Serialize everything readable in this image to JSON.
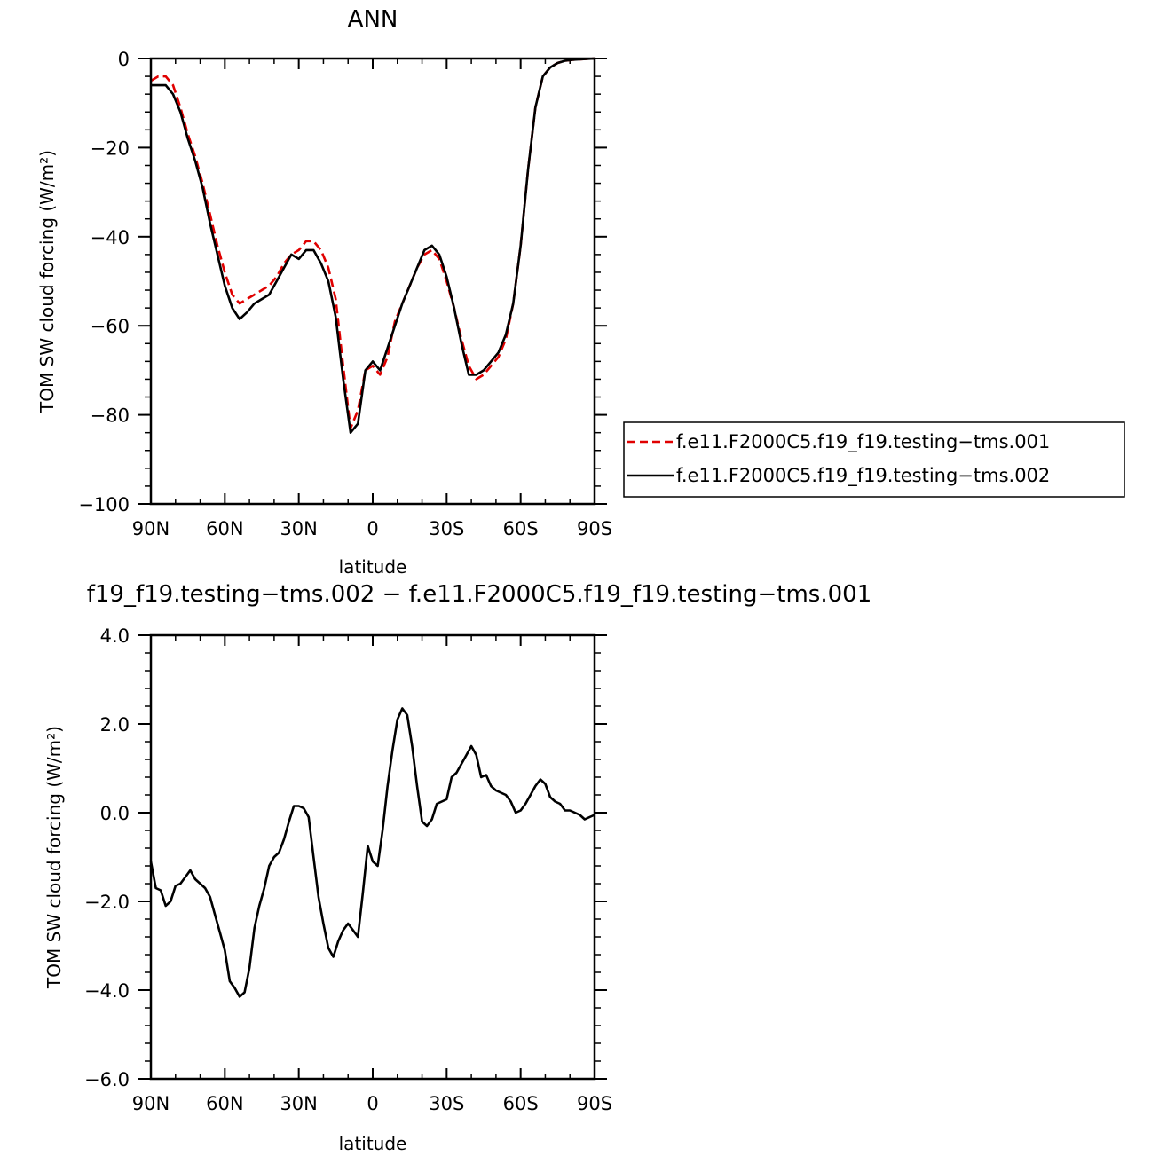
{
  "chart_data": [
    {
      "type": "line",
      "title": "ANN",
      "xlabel": "latitude",
      "ylabel": "TOM SW cloud forcing (W/m²)",
      "xlim": [
        90,
        -90
      ],
      "ylim": [
        -100,
        0
      ],
      "xticks": [
        90,
        60,
        30,
        0,
        -30,
        -60,
        -90
      ],
      "xtick_labels": [
        "90N",
        "60N",
        "30N",
        "0",
        "30S",
        "60S",
        "90S"
      ],
      "yticks": [
        0,
        -20,
        -40,
        -60,
        -80,
        -100
      ],
      "ytick_labels": [
        "0",
        "−20",
        "−40",
        "−60",
        "−80",
        "−100"
      ],
      "legend_position": "right",
      "series": [
        {
          "name": "f.e11.F2000C5.f19_f19.testing−tms.001",
          "color": "#e00000",
          "dash": "dashed",
          "x": [
            90,
            87,
            84,
            81,
            78,
            75,
            72,
            69,
            66,
            63,
            60,
            57,
            54,
            51,
            48,
            45,
            42,
            39,
            36,
            33,
            30,
            27,
            24,
            21,
            18,
            15,
            12,
            9,
            6,
            3,
            0,
            -3,
            -6,
            -9,
            -12,
            -15,
            -18,
            -21,
            -24,
            -27,
            -30,
            -33,
            -36,
            -39,
            -42,
            -45,
            -48,
            -51,
            -54,
            -57,
            -60,
            -63,
            -66,
            -69,
            -72,
            -75,
            -78,
            -81,
            -84,
            -87,
            -90
          ],
          "y": [
            -5,
            -4,
            -4,
            -6,
            -11,
            -17,
            -22,
            -28,
            -35,
            -42,
            -48,
            -53,
            -55,
            -54,
            -53,
            -52,
            -51,
            -49,
            -46,
            -44,
            -43,
            -41,
            -41,
            -43,
            -47,
            -54,
            -69,
            -83,
            -79,
            -70,
            -69,
            -71,
            -67,
            -59,
            -55,
            -51,
            -47,
            -44,
            -43,
            -45,
            -50,
            -56,
            -63,
            -69,
            -72,
            -71,
            -69,
            -67,
            -63,
            -55,
            -42,
            -25,
            -11,
            -4,
            -2,
            -1,
            -0.5,
            -0.3,
            -0.2,
            -0.1,
            0
          ]
        },
        {
          "name": "f.e11.F2000C5.f19_f19.testing−tms.002",
          "color": "#000000",
          "dash": "solid",
          "x": [
            90,
            87,
            84,
            81,
            78,
            75,
            72,
            69,
            66,
            63,
            60,
            57,
            54,
            51,
            48,
            45,
            42,
            39,
            36,
            33,
            30,
            27,
            24,
            21,
            18,
            15,
            12,
            9,
            6,
            3,
            0,
            -3,
            -6,
            -9,
            -12,
            -15,
            -18,
            -21,
            -24,
            -27,
            -30,
            -33,
            -36,
            -39,
            -42,
            -45,
            -48,
            -51,
            -54,
            -57,
            -60,
            -63,
            -66,
            -69,
            -72,
            -75,
            -78,
            -81,
            -84,
            -87,
            -90
          ],
          "y": [
            -6,
            -6,
            -6,
            -8,
            -12,
            -18,
            -23,
            -29,
            -37,
            -44,
            -51,
            -56,
            -58.5,
            -57,
            -55,
            -54,
            -53,
            -50,
            -47,
            -44,
            -45,
            -43,
            -43,
            -46,
            -50,
            -58,
            -72,
            -84,
            -82,
            -70,
            -68,
            -70,
            -65,
            -60,
            -55,
            -51,
            -47,
            -43,
            -42,
            -44,
            -49,
            -56,
            -64,
            -71,
            -71,
            -70,
            -68,
            -66,
            -62,
            -55,
            -42,
            -25,
            -11,
            -4,
            -2,
            -1,
            -0.5,
            -0.3,
            -0.2,
            -0.1,
            0
          ]
        }
      ]
    },
    {
      "type": "line",
      "title": "f19_f19.testing−tms.002 − f.e11.F2000C5.f19_f19.testing−tms.001",
      "xlabel": "latitude",
      "ylabel": "TOM SW cloud forcing (W/m²)",
      "xlim": [
        90,
        -90
      ],
      "ylim": [
        -6,
        4
      ],
      "xticks": [
        90,
        60,
        30,
        0,
        -30,
        -60,
        -90
      ],
      "xtick_labels": [
        "90N",
        "60N",
        "30N",
        "0",
        "30S",
        "60S",
        "90S"
      ],
      "yticks": [
        4,
        2,
        0,
        -2,
        -4,
        -6
      ],
      "ytick_labels": [
        "4.0",
        "2.0",
        "0.0",
        "−2.0",
        "−4.0",
        "−6.0"
      ],
      "series": [
        {
          "color": "#000000",
          "dash": "solid",
          "x": [
            90,
            88,
            86,
            84,
            82,
            80,
            78,
            76,
            74,
            72,
            70,
            68,
            66,
            64,
            62,
            60,
            58,
            56,
            54,
            52,
            50,
            48,
            46,
            44,
            42,
            40,
            38,
            36,
            34,
            32,
            30,
            28,
            26,
            24,
            22,
            20,
            18,
            16,
            14,
            12,
            10,
            8,
            6,
            4,
            2,
            0,
            -2,
            -4,
            -6,
            -8,
            -10,
            -12,
            -14,
            -16,
            -18,
            -20,
            -22,
            -24,
            -26,
            -28,
            -30,
            -32,
            -34,
            -36,
            -38,
            -40,
            -42,
            -44,
            -46,
            -48,
            -50,
            -52,
            -54,
            -56,
            -58,
            -60,
            -62,
            -64,
            -66,
            -68,
            -70,
            -72,
            -74,
            -76,
            -78,
            -80,
            -82,
            -84,
            -86,
            -88,
            -90
          ],
          "y": [
            -1.1,
            -1.7,
            -1.75,
            -2.1,
            -2.0,
            -1.65,
            -1.6,
            -1.45,
            -1.3,
            -1.5,
            -1.6,
            -1.7,
            -1.9,
            -2.3,
            -2.7,
            -3.1,
            -3.8,
            -3.95,
            -4.15,
            -4.05,
            -3.5,
            -2.6,
            -2.1,
            -1.7,
            -1.2,
            -1.0,
            -0.9,
            -0.6,
            -0.2,
            0.15,
            0.15,
            0.1,
            -0.1,
            -1.0,
            -1.9,
            -2.5,
            -3.05,
            -3.25,
            -2.9,
            -2.65,
            -2.5,
            -2.65,
            -2.8,
            -1.8,
            -0.75,
            -1.1,
            -1.2,
            -0.4,
            0.6,
            1.4,
            2.1,
            2.35,
            2.2,
            1.5,
            0.6,
            -0.2,
            -0.3,
            -0.15,
            0.2,
            0.25,
            0.3,
            0.8,
            0.9,
            1.1,
            1.3,
            1.5,
            1.3,
            0.8,
            0.85,
            0.6,
            0.5,
            0.45,
            0.4,
            0.25,
            0.0,
            0.05,
            0.2,
            0.4,
            0.6,
            0.75,
            0.65,
            0.35,
            0.25,
            0.2,
            0.05,
            0.05,
            0.0,
            -0.05,
            -0.15,
            -0.1,
            -0.05
          ]
        }
      ]
    }
  ]
}
